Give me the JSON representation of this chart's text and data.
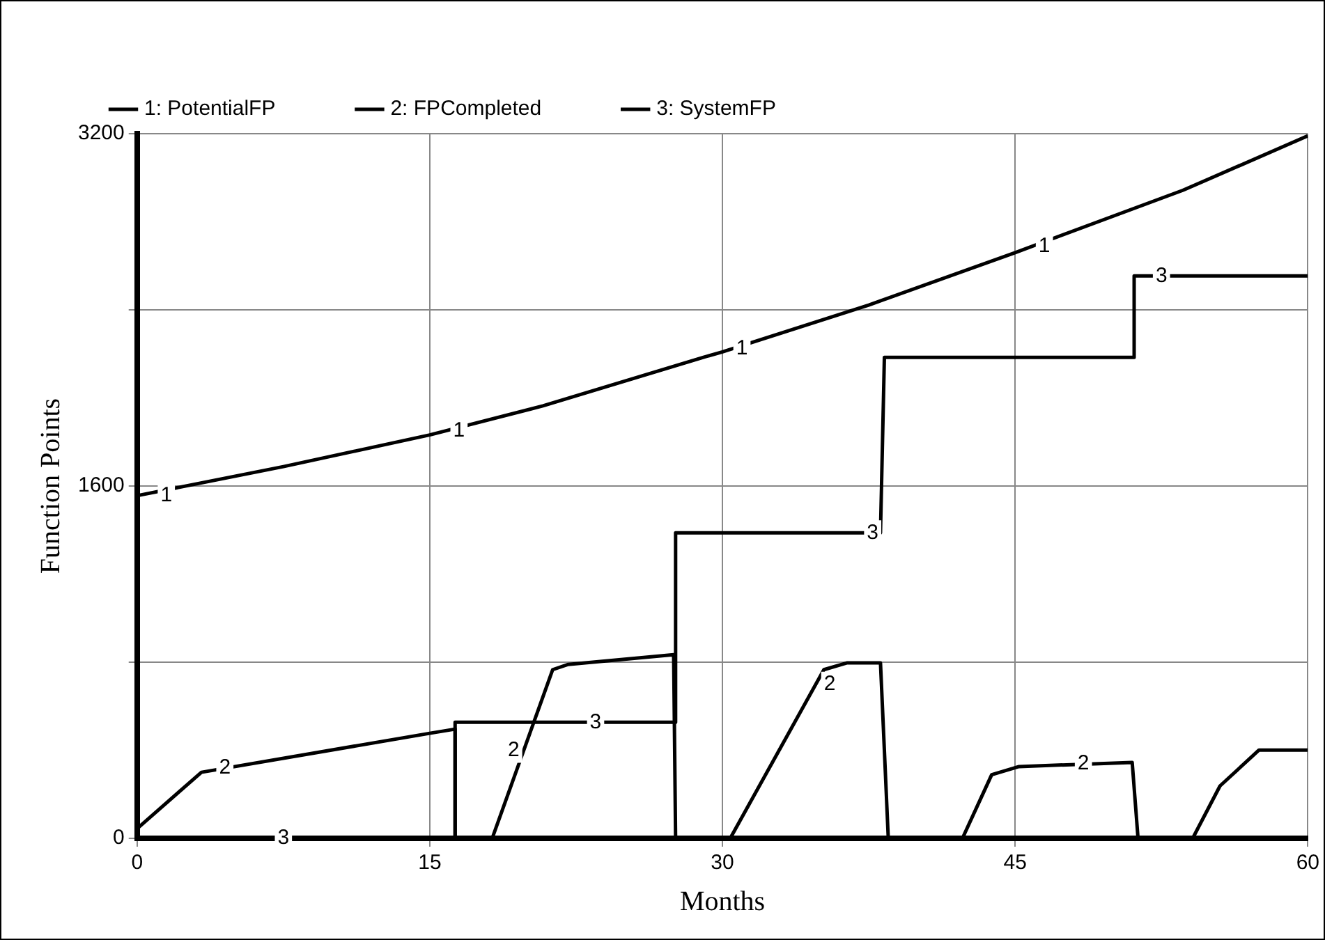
{
  "chart_data": {
    "type": "line",
    "xlabel": "Months",
    "ylabel": "Function Points",
    "xlim": [
      0,
      60
    ],
    "xticks": [
      0,
      15,
      30,
      45,
      60
    ],
    "ylim": [
      0,
      3200
    ],
    "yticks": [
      0,
      {
        "value": 800,
        "label": null
      },
      1600,
      {
        "value": 2400,
        "label": null
      },
      3200
    ],
    "grid": true,
    "legend": "top",
    "marker": "none",
    "line_style": "solid",
    "series": [
      {
        "name": "1: PotentialFP",
        "color": "#000000",
        "x": [
          0,
          7.5,
          15,
          20.8,
          29,
          30,
          37.5,
          45,
          53.6,
          60
        ],
        "values": [
          1556,
          1688,
          1832,
          1964,
          2184,
          2209,
          2422,
          2660,
          2943,
          3190
        ]
      },
      {
        "name": "2: FPCompleted",
        "color": "#000000",
        "x": [
          0,
          3.3,
          15,
          16.3,
          16.3,
          18.2,
          21.3,
          22.1,
          27.5,
          27.6,
          30.4,
          35.2,
          36.4,
          38.1,
          38.5,
          42.3,
          43.8,
          45.2,
          51,
          51.3,
          54.1,
          55.5,
          57.5,
          60
        ],
        "values": [
          44,
          300,
          477,
          496,
          0,
          0,
          766,
          790,
          834,
          0,
          0,
          766,
          797,
          797,
          0,
          0,
          289,
          326,
          345,
          0,
          0,
          238,
          401,
          401
        ]
      },
      {
        "name": "3: SystemFP",
        "color": "#000000",
        "x": [
          0,
          16.3,
          16.3,
          27.6,
          27.6,
          38.1,
          38.3,
          51.1,
          51.1,
          60
        ],
        "values": [
          0,
          0,
          527,
          527,
          1387,
          1387,
          2184,
          2184,
          2554,
          2554
        ]
      }
    ],
    "annotations": [
      {
        "text": "1",
        "x": 1.5,
        "y": 1556
      },
      {
        "text": "1",
        "x": 16.5,
        "y": 1850
      },
      {
        "text": "1",
        "x": 31,
        "y": 2225
      },
      {
        "text": "1",
        "x": 46.5,
        "y": 2690
      },
      {
        "text": "2",
        "x": 4.5,
        "y": 320
      },
      {
        "text": "2",
        "x": 19.3,
        "y": 400
      },
      {
        "text": "2",
        "x": 35.5,
        "y": 700
      },
      {
        "text": "2",
        "x": 48.5,
        "y": 340
      },
      {
        "text": "3",
        "x": 7.5,
        "y": 0
      },
      {
        "text": "3",
        "x": 23.5,
        "y": 527
      },
      {
        "text": "3",
        "x": 37.7,
        "y": 1387
      },
      {
        "text": "3",
        "x": 52.5,
        "y": 2554
      }
    ]
  }
}
